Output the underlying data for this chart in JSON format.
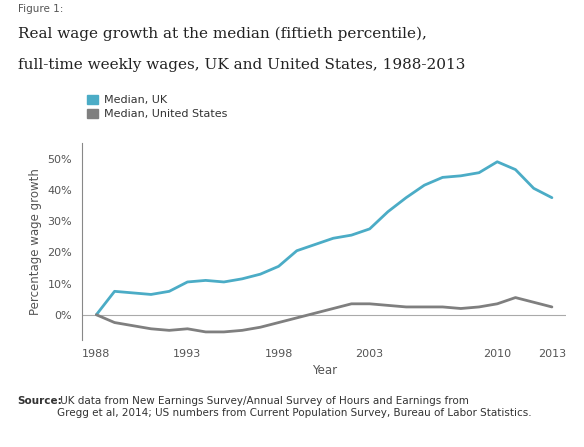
{
  "figure_label": "Figure 1:",
  "title_line1": "Real wage growth at the median (fiftieth percentile),",
  "title_line2": "full-time weekly wages, UK and United States, 1988-2013",
  "xlabel": "Year",
  "ylabel": "Percentage wage growth",
  "background_color": "#ffffff",
  "plot_background": "#ffffff",
  "uk_color": "#4bacc6",
  "us_color": "#7f7f7f",
  "uk_label": "Median, UK",
  "us_label": "Median, United States",
  "uk_years": [
    1988,
    1989,
    1990,
    1991,
    1992,
    1993,
    1994,
    1995,
    1996,
    1997,
    1998,
    1999,
    2000,
    2001,
    2002,
    2003,
    2004,
    2005,
    2006,
    2007,
    2008,
    2009,
    2010,
    2011,
    2012,
    2013
  ],
  "uk_values": [
    0,
    7.5,
    7.0,
    6.5,
    7.5,
    10.5,
    11.0,
    10.5,
    11.5,
    13.0,
    15.5,
    20.5,
    22.5,
    24.5,
    25.5,
    27.5,
    33.0,
    37.5,
    41.5,
    44.0,
    44.5,
    45.5,
    49.0,
    46.5,
    40.5,
    37.5
  ],
  "us_years": [
    1988,
    1989,
    1990,
    1991,
    1992,
    1993,
    1994,
    1995,
    1996,
    1997,
    1998,
    1999,
    2000,
    2001,
    2002,
    2003,
    2004,
    2005,
    2006,
    2007,
    2008,
    2009,
    2010,
    2011,
    2012,
    2013
  ],
  "us_values": [
    0,
    -2.5,
    -3.5,
    -4.5,
    -5.0,
    -4.5,
    -5.5,
    -5.5,
    -5.0,
    -4.0,
    -2.5,
    -1.0,
    0.5,
    2.0,
    3.5,
    3.5,
    3.0,
    2.5,
    2.5,
    2.5,
    2.0,
    2.5,
    3.5,
    5.5,
    4.0,
    2.5
  ],
  "ytick_labels": [
    "0%",
    "10%",
    "20%",
    "30%",
    "40%",
    "50%"
  ],
  "ytick_values": [
    0,
    10,
    20,
    30,
    40,
    50
  ],
  "xtick_values": [
    1988,
    1993,
    1998,
    2003,
    2010,
    2013
  ],
  "ylim": [
    -8,
    55
  ],
  "xlim": [
    1987.2,
    2013.8
  ],
  "source_bold": "Source:",
  "source_normal": " UK data from New Earnings Survey/Annual Survey of Hours and Earnings from\nGregg et al, 2014; US numbers from Current Population Survey, Bureau of Labor Statistics.",
  "linewidth": 2.0
}
